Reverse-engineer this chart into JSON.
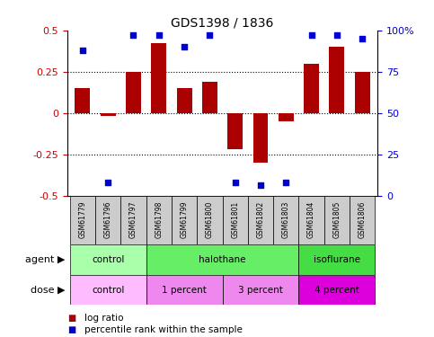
{
  "title": "GDS1398 / 1836",
  "samples": [
    "GSM61779",
    "GSM61796",
    "GSM61797",
    "GSM61798",
    "GSM61799",
    "GSM61800",
    "GSM61801",
    "GSM61802",
    "GSM61803",
    "GSM61804",
    "GSM61805",
    "GSM61806"
  ],
  "log_ratio": [
    0.15,
    -0.02,
    0.25,
    0.42,
    0.15,
    0.19,
    -0.22,
    -0.3,
    -0.05,
    0.3,
    0.4,
    0.25
  ],
  "percentile": [
    88,
    8,
    97,
    97,
    90,
    97,
    8,
    6,
    8,
    97,
    97,
    95
  ],
  "agent_data": [
    {
      "label": "control",
      "start": 0,
      "end": 3,
      "color": "#AAFFAA"
    },
    {
      "label": "halothane",
      "start": 3,
      "end": 9,
      "color": "#66EE66"
    },
    {
      "label": "isoflurane",
      "start": 9,
      "end": 12,
      "color": "#44DD44"
    }
  ],
  "dose_data": [
    {
      "label": "control",
      "start": 0,
      "end": 3,
      "color": "#FFBBFF"
    },
    {
      "label": "1 percent",
      "start": 3,
      "end": 6,
      "color": "#EE88EE"
    },
    {
      "label": "3 percent",
      "start": 6,
      "end": 9,
      "color": "#EE88EE"
    },
    {
      "label": "4 percent",
      "start": 9,
      "end": 12,
      "color": "#DD00DD"
    }
  ],
  "bar_color": "#AA0000",
  "dot_color": "#0000CC",
  "sample_bg": "#CCCCCC",
  "ylim": [
    -0.5,
    0.5
  ],
  "y2lim": [
    0,
    100
  ],
  "yticks": [
    -0.5,
    -0.25,
    0.0,
    0.25,
    0.5
  ],
  "y2ticks": [
    0,
    25,
    50,
    75,
    100
  ],
  "ytick_labels": [
    "-0.5",
    "-0.25",
    "0",
    "0.25",
    "0.5"
  ],
  "y2tick_labels": [
    "0",
    "25",
    "50",
    "75",
    "100%"
  ],
  "hlines": [
    -0.25,
    0.0,
    0.25
  ],
  "left_ycolor": "#CC0000",
  "right_ycolor": "#0000CC",
  "agent_label": "agent",
  "dose_label": "dose",
  "legend_items": [
    {
      "label": "log ratio",
      "color": "#AA0000"
    },
    {
      "label": "percentile rank within the sample",
      "color": "#0000CC"
    }
  ]
}
